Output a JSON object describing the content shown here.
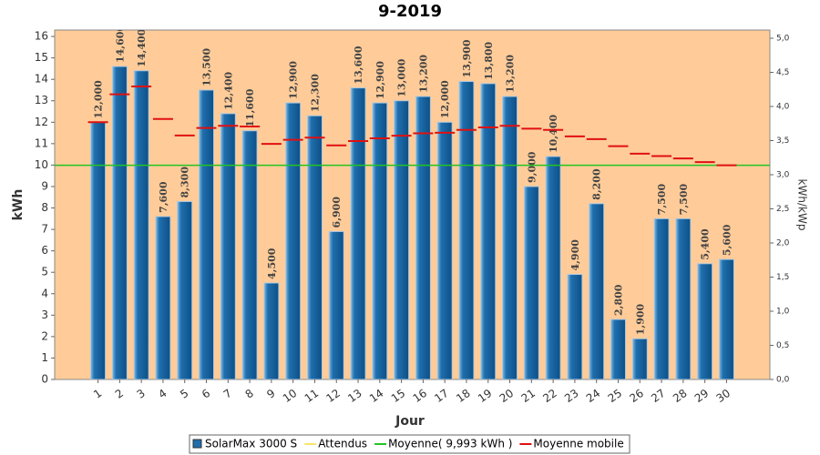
{
  "chart_data": {
    "type": "bar",
    "title": "9-2019",
    "x_label": "Jour",
    "y_label": "kWh",
    "y2_label": "kWh/kWp",
    "categories": [
      "1",
      "2",
      "3",
      "4",
      "5",
      "6",
      "7",
      "8",
      "9",
      "10",
      "11",
      "12",
      "13",
      "14",
      "15",
      "16",
      "17",
      "18",
      "19",
      "20",
      "21",
      "22",
      "23",
      "24",
      "25",
      "26",
      "27",
      "28",
      "29",
      "30"
    ],
    "series": [
      {
        "name": "SolarMax 3000 S",
        "color": "#1f6fae",
        "type": "bar",
        "values": [
          12.0,
          14.6,
          14.4,
          7.6,
          8.3,
          13.5,
          12.4,
          11.6,
          4.5,
          12.9,
          12.3,
          6.9,
          13.6,
          12.9,
          13.0,
          13.2,
          12.0,
          13.9,
          13.8,
          13.2,
          9.0,
          10.4,
          4.9,
          8.2,
          2.8,
          1.9,
          7.5,
          7.5,
          5.4,
          5.6
        ],
        "value_labels": [
          "12,000",
          "14,600",
          "14,400",
          "7,600",
          "8,300",
          "13,500",
          "12,400",
          "11,600",
          "4,500",
          "12,900",
          "12,300",
          "6,900",
          "13,600",
          "12,900",
          "13,000",
          "13,200",
          "12,000",
          "13,900",
          "13,800",
          "13,200",
          "9,000",
          "10,400",
          "4,900",
          "8,200",
          "2,800",
          "1,900",
          "7,500",
          "7,500",
          "5,400",
          "5,600"
        ]
      },
      {
        "name": "Attendus",
        "color": "#f5e66a",
        "type": "none"
      },
      {
        "name": "Moyenne( 9,993 kWh )",
        "color": "#22c422",
        "type": "hline",
        "value": 9.993
      },
      {
        "name": "Moyenne mobile",
        "color": "#e01010",
        "type": "dash",
        "values": [
          12.0,
          13.3,
          13.67,
          12.15,
          11.38,
          11.73,
          11.83,
          11.8,
          10.99,
          11.18,
          11.28,
          10.92,
          11.12,
          11.25,
          11.37,
          11.48,
          11.51,
          11.64,
          11.76,
          11.83,
          11.7,
          11.64,
          11.34,
          11.21,
          10.88,
          10.53,
          10.42,
          10.31,
          10.14,
          9.99
        ]
      }
    ],
    "ylim": [
      0,
      16.3
    ],
    "yticks": [
      0,
      1,
      2,
      3,
      4,
      5,
      6,
      7,
      8,
      9,
      10,
      11,
      12,
      13,
      14,
      15,
      16
    ],
    "y2lim": [
      0,
      5.12
    ],
    "y2ticks": [
      {
        "value": 0,
        "label": "0,0"
      },
      {
        "value": 0.5,
        "label": "0,5"
      },
      {
        "value": 1,
        "label": "1,0"
      },
      {
        "value": 1.5,
        "label": "1,5"
      },
      {
        "value": 2,
        "label": "2,0"
      },
      {
        "value": 2.5,
        "label": "2,5"
      },
      {
        "value": 3,
        "label": "3,0"
      },
      {
        "value": 3.5,
        "label": "3,5"
      },
      {
        "value": 4,
        "label": "4,0"
      },
      {
        "value": 4.5,
        "label": "4,5"
      },
      {
        "value": 5,
        "label": "5,0"
      }
    ],
    "plot_background": "#ffcc99"
  }
}
